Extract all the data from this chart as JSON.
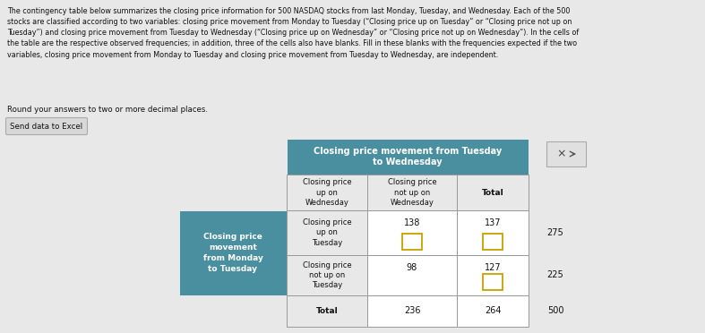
{
  "paragraph_line1": "The contingency table below summarizes the closing price information for 500 NASDAQ stocks from last Monday, Tuesday, and Wednesday. Each of the 500",
  "paragraph_line2": "stocks are classified according to two variables: closing price movement from Monday to Tuesday (“Closing price up on Tuesday” or “Closing price not up on",
  "paragraph_line3": "Tuesday”) and closing price movement from Tuesday to Wednesday (“Closing price up on Wednesday” or “Closing price not up on Wednesday”). In the cells of",
  "paragraph_line4": "the table are the respective observed frequencies; in addition, three of the cells also have blanks. Fill in these blanks with the frequencies expected if the two",
  "paragraph_line5": "variables, closing price movement from Monday to Tuesday and closing price movement from Tuesday to Wednesday, are independent.",
  "round_note": "Round your answers to two or more decimal places.",
  "send_data_label": "Send data to Excel",
  "header_bg": "#4a8fa0",
  "header_text": "#ffffff",
  "cell_bg": "#ffffff",
  "cell_bg_alt": "#e8e8e8",
  "col_header1": "Closing price\nup on\nWednesday",
  "col_header2": "Closing price\nnot up on\nWednesday",
  "col_header_total": "Total",
  "top_header": "Closing price movement from Tuesday\nto Wednesday",
  "left_top_header": "Closing price\nmovement\nfrom Monday\nto Tuesday",
  "row_label1": "Closing price\nup on\nTuesday",
  "row_label2": "Closing price\nnot up on\nTuesday",
  "row_label_total": "Total",
  "r1c1": "138",
  "r1c2": "137",
  "r1_total": "275",
  "r2c1": "98",
  "r2c2": "127",
  "r2_total": "225",
  "total_c1": "236",
  "total_c2": "264",
  "grand_total": "500",
  "bg_color": "#e8e8e8",
  "para_fontsize": 5.8,
  "cell_fontsize": 7.0,
  "header_fontsize": 7.0,
  "blank_edge_color": "#c8a000",
  "border_color": "#999999"
}
